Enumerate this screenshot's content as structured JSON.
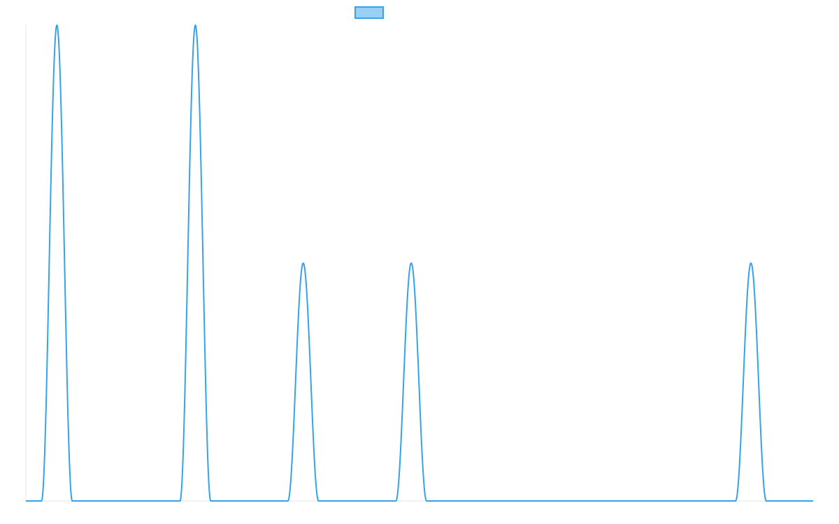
{
  "chart_data": {
    "type": "line",
    "title": "",
    "xlabel": "",
    "ylabel": "",
    "x_range": [
      0,
      1
    ],
    "y_range": [
      0,
      1
    ],
    "grid": false,
    "legend": {
      "placement": "top-center",
      "entries": [
        {
          "label": "",
          "color": "#36a2eb",
          "fill": "#9ad0f5"
        }
      ]
    },
    "series": [
      {
        "color": "#36a2eb",
        "baseline": 0,
        "peaks": [
          {
            "center": 0.0394,
            "halfwidth": 0.0195,
            "height": 1.0
          },
          {
            "center": 0.2153,
            "halfwidth": 0.0195,
            "height": 1.0
          },
          {
            "center": 0.3523,
            "halfwidth": 0.0195,
            "height": 0.5
          },
          {
            "center": 0.4895,
            "halfwidth": 0.0195,
            "height": 0.5
          },
          {
            "center": 0.921,
            "halfwidth": 0.0195,
            "height": 0.5
          }
        ]
      }
    ]
  }
}
